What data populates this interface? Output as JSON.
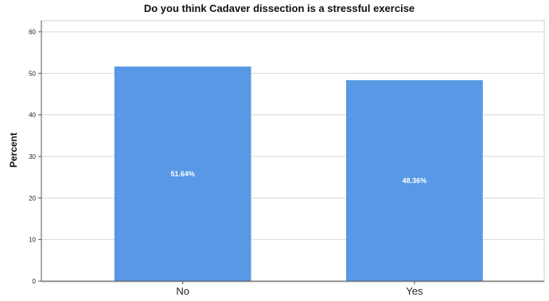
{
  "chart_data": {
    "type": "bar",
    "title": "Do you think Cadaver dissection is a stressful exercise",
    "xlabel": "",
    "ylabel": "Percent",
    "categories": [
      "No",
      "Yes"
    ],
    "values": [
      51.64,
      48.36
    ],
    "data_labels": [
      "51.64%",
      "48.36%"
    ],
    "ylim": [
      0,
      60
    ],
    "yticks": [
      0,
      10,
      20,
      30,
      40,
      50,
      60
    ],
    "grid": true,
    "bar_color": "#5898e5",
    "legend": "none"
  }
}
